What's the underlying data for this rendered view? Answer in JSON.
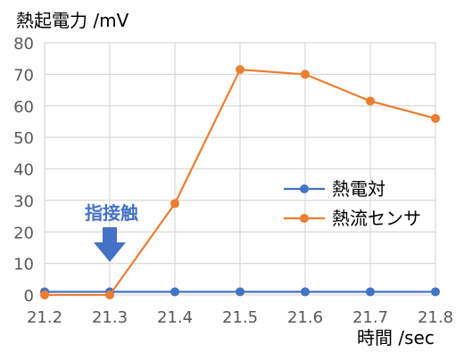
{
  "chart_data": {
    "type": "line",
    "ylabel": "熱起電力 /mV",
    "xlabel": "時間 /sec",
    "x": [
      21.2,
      21.3,
      21.4,
      21.5,
      21.6,
      21.7,
      21.8
    ],
    "x_tick_labels": [
      "21.2",
      "21.3",
      "21.4",
      "21.5",
      "21.6",
      "21.7",
      "21.8"
    ],
    "xlim": [
      21.2,
      21.8
    ],
    "ylim": [
      0,
      80
    ],
    "y_ticks": [
      0,
      10,
      20,
      30,
      40,
      50,
      60,
      70,
      80
    ],
    "grid": true,
    "legend_position": "middle-right",
    "series": [
      {
        "name": "熱電対",
        "color": "#4472C4",
        "x": [
          21.2,
          21.3,
          21.4,
          21.5,
          21.6,
          21.7,
          21.8
        ],
        "values": [
          1,
          1,
          1,
          1,
          1,
          1,
          1
        ]
      },
      {
        "name": "熱流センサ",
        "color": "#ED7D31",
        "x": [
          21.2,
          21.3,
          21.4,
          21.5,
          21.6,
          21.7,
          21.8
        ],
        "values": [
          0,
          0,
          29,
          71.5,
          70,
          61.5,
          56
        ]
      }
    ],
    "annotations": [
      {
        "text": "指接触",
        "x": 21.3,
        "icon": "down-arrow-icon",
        "color": "#4472C4"
      }
    ]
  }
}
